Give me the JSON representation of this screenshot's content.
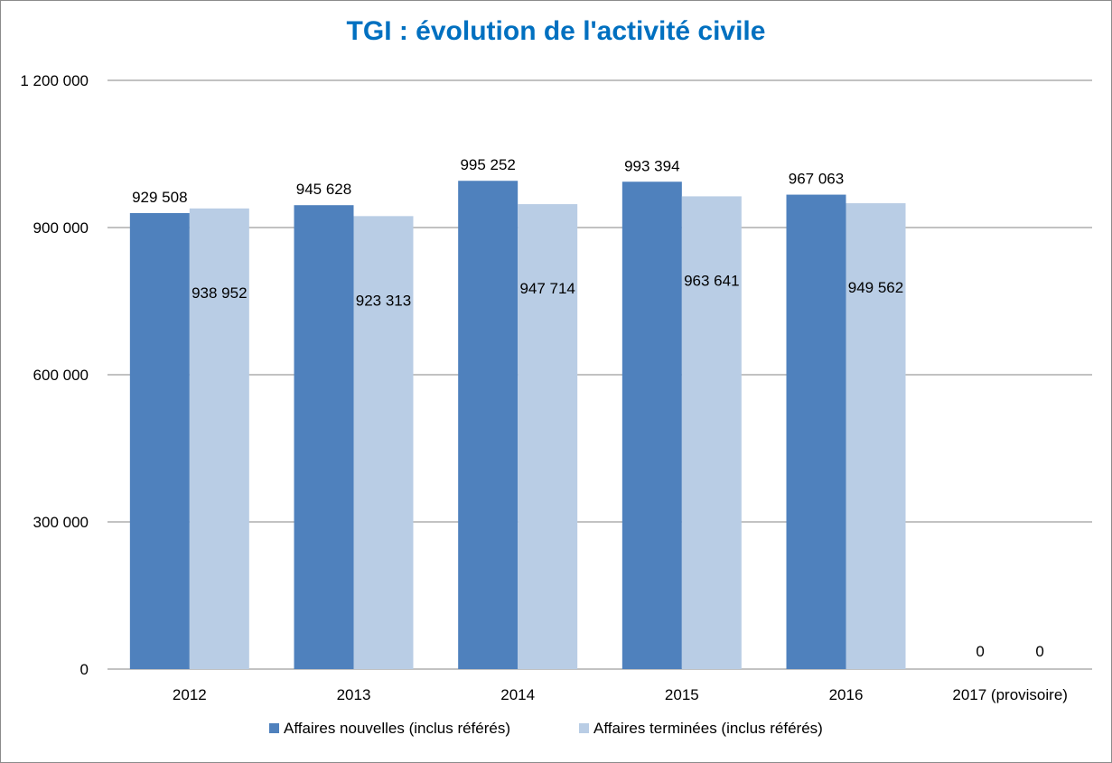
{
  "chart_data": {
    "type": "bar",
    "title": "TGI : évolution de l'activité civile",
    "categories": [
      "2012",
      "2013",
      "2014",
      "2015",
      "2016",
      "2017 (provisoire)"
    ],
    "series": [
      {
        "name": "Affaires nouvelles (inclus référés)",
        "color": "#4f81bd",
        "values": [
          929508,
          945628,
          995252,
          993394,
          967063,
          0
        ],
        "labels": [
          "929 508",
          "945 628",
          "995 252",
          "993 394",
          "967 063",
          "0"
        ]
      },
      {
        "name": "Affaires terminées (inclus référés)",
        "color": "#b9cde5",
        "values": [
          938952,
          923313,
          947714,
          963641,
          949562,
          0
        ],
        "labels": [
          "938 952",
          "923 313",
          "947 714",
          "963 641",
          "949 562",
          "0"
        ]
      }
    ],
    "ylim": [
      0,
      1200000
    ],
    "yticks": [
      0,
      300000,
      600000,
      900000,
      1200000
    ],
    "ytick_labels": [
      "0",
      "300 000",
      "600 000",
      "900 000",
      "1 200 000"
    ],
    "grid": true,
    "legend_position": "bottom"
  }
}
